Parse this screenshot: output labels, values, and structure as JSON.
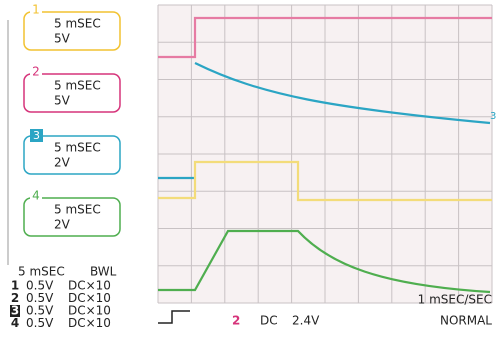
{
  "channels": [
    {
      "number": "1",
      "time": "5 mSEC",
      "volts": "5V"
    },
    {
      "number": "2",
      "time": "5 mSEC",
      "volts": "5V"
    },
    {
      "number": "3",
      "time": "5 mSEC",
      "volts": "2V"
    },
    {
      "number": "4",
      "time": "5 mSEC",
      "volts": "2V"
    }
  ],
  "settings": {
    "time": "5 mSEC",
    "filter": "BWL",
    "rows": [
      {
        "number": "1",
        "volts": "0.5V",
        "coupling": "DC×10"
      },
      {
        "number": "2",
        "volts": "0.5V",
        "coupling": "DC×10"
      },
      {
        "number": "3",
        "volts": "0.5V",
        "coupling": "DC×10"
      },
      {
        "number": "4",
        "volts": "0.5V",
        "coupling": "DC×10"
      }
    ]
  },
  "trigger": {
    "channel": "2",
    "coupling": "DC",
    "level": "2.4V"
  },
  "timebase": "1 mSEC/SEC",
  "mode": "NORMAL",
  "marker": "3"
}
